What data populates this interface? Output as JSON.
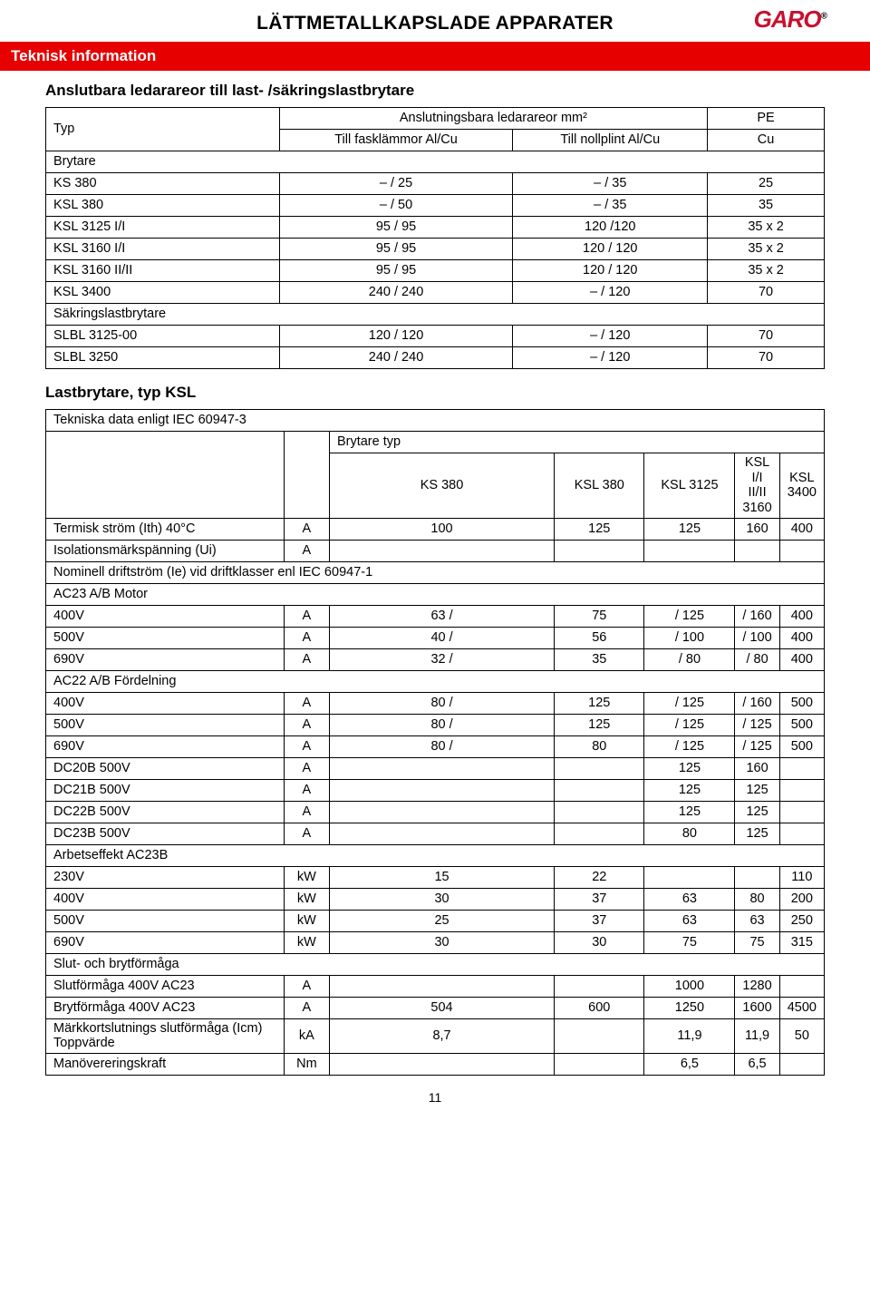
{
  "page": {
    "main_heading": "LÄTTMETALLKAPSLADE APPARATER",
    "logo_text": "GARO",
    "redbar": "Teknisk information",
    "page_number": "11"
  },
  "section1": {
    "title": "Anslutbara ledarareor till last- /säkringslastbrytare",
    "header": {
      "typ": "Typ",
      "anslut": "Anslutningsbara ledarareor mm²",
      "fask": "Till fasklämmor Al/Cu",
      "noll": "Till nollplint Al/Cu",
      "pe": "PE",
      "cu": "Cu"
    },
    "rows": [
      {
        "c1": "Brytare",
        "span": true
      },
      {
        "c1": "KS 380",
        "c2": "– / 25",
        "c3": "– / 35",
        "c4": "25"
      },
      {
        "c1": "KSL 380",
        "c2": "– / 50",
        "c3": "– / 35",
        "c4": "35"
      },
      {
        "c1": "KSL 3125 I/I",
        "c2": "95 / 95",
        "c3": "120 /120",
        "c4": "35 x 2"
      },
      {
        "c1": "KSL 3160 I/I",
        "c2": "95 / 95",
        "c3": "120 / 120",
        "c4": "35 x 2"
      },
      {
        "c1": "KSL 3160 II/II",
        "c2": "95 / 95",
        "c3": "120 / 120",
        "c4": "35 x 2"
      },
      {
        "c1": "KSL 3400",
        "c2": "240 / 240",
        "c3": "– / 120",
        "c4": "70"
      },
      {
        "c1": "Säkringslastbrytare",
        "span": true
      },
      {
        "c1": "SLBL 3125-00",
        "c2": "120 / 120",
        "c3": "– / 120",
        "c4": "70"
      },
      {
        "c1": "SLBL 3250",
        "c2": "240 / 240",
        "c3": "– / 120",
        "c4": "70"
      }
    ]
  },
  "section2": {
    "title": "Lastbrytare, typ KSL",
    "subtitle": "Tekniska data enligt IEC 60947-3",
    "header": {
      "brytare_typ": "Brytare typ",
      "c1": "KS 380",
      "c2": "KSL 380",
      "c3": "KSL 3125",
      "c4": "KSL I/I II/II\n3160",
      "c5": "KSL 3400"
    },
    "rows": [
      {
        "label": "Termisk ström (Ith) 40°C",
        "u": "A",
        "v": [
          "100",
          "125",
          "125",
          "160",
          "400"
        ]
      },
      {
        "label": "Isolationsmärkspänning (Ui)",
        "u": "A",
        "v": [
          "",
          "",
          "",
          "",
          ""
        ]
      },
      {
        "label": "Nominell driftström (Ie) vid driftklasser enl IEC 60947-1",
        "span": true
      },
      {
        "label": "AC23 A/B Motor",
        "span": true
      },
      {
        "label": "400V",
        "u": "A",
        "v": [
          "63 /",
          "75",
          "/ 125",
          "/ 160",
          "400"
        ]
      },
      {
        "label": "500V",
        "u": "A",
        "v": [
          "40 /",
          "56",
          "/ 100",
          "/ 100",
          "400"
        ]
      },
      {
        "label": "690V",
        "u": "A",
        "v": [
          "32 /",
          "35",
          "/ 80",
          "/ 80",
          "400"
        ]
      },
      {
        "label": "AC22 A/B Fördelning",
        "span": true
      },
      {
        "label": "400V",
        "u": "A",
        "v": [
          "80 /",
          "125",
          "/ 125",
          "/ 160",
          "500"
        ]
      },
      {
        "label": "500V",
        "u": "A",
        "v": [
          "80 /",
          "125",
          "/ 125",
          "/ 125",
          "500"
        ]
      },
      {
        "label": "690V",
        "u": "A",
        "v": [
          "80 /",
          "80",
          "/ 125",
          "/ 125",
          "500"
        ]
      },
      {
        "label": "DC20B 500V",
        "u": "A",
        "v": [
          "",
          "",
          "125",
          "160",
          ""
        ]
      },
      {
        "label": "DC21B 500V",
        "u": "A",
        "v": [
          "",
          "",
          "125",
          "125",
          ""
        ]
      },
      {
        "label": "DC22B 500V",
        "u": "A",
        "v": [
          "",
          "",
          "125",
          "125",
          ""
        ]
      },
      {
        "label": "DC23B 500V",
        "u": "A",
        "v": [
          "",
          "",
          "80",
          "125",
          ""
        ]
      },
      {
        "label": "Arbetseffekt AC23B",
        "span": true
      },
      {
        "label": "230V",
        "u": "kW",
        "v": [
          "15",
          "22",
          "",
          "",
          "110"
        ]
      },
      {
        "label": "400V",
        "u": "kW",
        "v": [
          "30",
          "37",
          "63",
          "80",
          "200"
        ]
      },
      {
        "label": "500V",
        "u": "kW",
        "v": [
          "25",
          "37",
          "63",
          "63",
          "250"
        ]
      },
      {
        "label": "690V",
        "u": "kW",
        "v": [
          "30",
          "30",
          "75",
          "75",
          "315"
        ]
      },
      {
        "label": "Slut- och brytförmåga",
        "span": true
      },
      {
        "label": "Slutförmåga 400V AC23",
        "u": "A",
        "v": [
          "",
          "",
          "1000",
          "1280",
          ""
        ]
      },
      {
        "label": "Brytförmåga 400V AC23",
        "u": "A",
        "v": [
          "504",
          "600",
          "1250",
          "1600",
          "4500"
        ]
      },
      {
        "label": "Märkkortslutnings slutförmåga (Icm) Toppvärde",
        "u": "kA",
        "v": [
          "8,7",
          "",
          "11,9",
          "11,9",
          "50"
        ]
      },
      {
        "label": "Manövereringskraft",
        "u": "Nm",
        "v": [
          "",
          "",
          "6,5",
          "6,5",
          ""
        ]
      }
    ]
  }
}
